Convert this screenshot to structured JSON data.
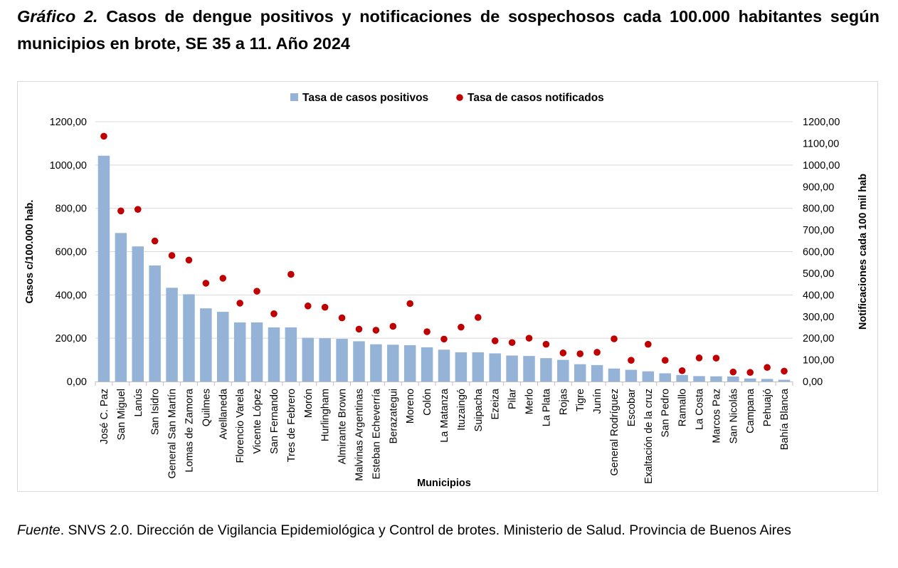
{
  "title": {
    "lead": "Gráfico 2.",
    "text": "Casos de dengue positivos y notificaciones de sospechosos cada 100.000 habitantes según municipios en brote, SE 35 a 11. Año 2024"
  },
  "source": {
    "lead": "Fuente",
    "text": ". SNVS 2.0. Dirección de Vigilancia Epidemiológica y Control de brotes. Ministerio de Salud. Provincia de Buenos Aires"
  },
  "chart_data": {
    "type": "bar",
    "xlabel": "Municipios",
    "ylabel": "Casos c/100.000 hab.",
    "y2label": "Notificaciones cada 100 mil hab",
    "ylim": [
      0,
      1200
    ],
    "y_ticks": [
      "0,00",
      "200,00",
      "400,00",
      "600,00",
      "800,00",
      "1000,00",
      "1200,00"
    ],
    "y2lim": [
      0,
      1200
    ],
    "y2_ticks": [
      "0,00",
      "100,00",
      "200,00",
      "300,00",
      "400,00",
      "500,00",
      "600,00",
      "700,00",
      "800,00",
      "900,00",
      "1000,00",
      "1100,00",
      "1200,00"
    ],
    "legend_position": "top-center",
    "grid": true,
    "colors": {
      "bar": "#95b3d7",
      "point": "#c00000",
      "grid": "#d9d9d9",
      "axis": "#bfbfbf"
    },
    "categories": [
      "José C. Paz",
      "San Miguel",
      "Lanús",
      "San Isidro",
      "General San Martín",
      "Lomas de Zamora",
      "Quilmes",
      "Avellaneda",
      "Florencio Varela",
      "Vicente López",
      "San Fernando",
      "Tres de Febrero",
      "Morón",
      "Hurlingham",
      "Almirante Brown",
      "Malvinas Argentinas",
      "Esteban Echeverría",
      "Berazategui",
      "Moreno",
      "Colón",
      "La Matanza",
      "Ituzaingó",
      "Suipacha",
      "Ezeiza",
      "Pilar",
      "Merlo",
      "La Plata",
      "Rojas",
      "Tigre",
      "Junín",
      "General Rodríguez",
      "Escobar",
      "Exaltación de la cruz",
      "San Pedro",
      "Ramallo",
      "La Costa",
      "Marcos Paz",
      "San Nicolás",
      "Campana",
      "Pehuajó",
      "Bahía Blanca"
    ],
    "series": [
      {
        "name": "Tasa de casos positivos",
        "kind": "bar",
        "axis": "left",
        "values": [
          1043,
          686,
          624,
          536,
          433,
          403,
          338,
          322,
          273,
          273,
          250,
          250,
          202,
          200,
          197,
          186,
          172,
          170,
          168,
          158,
          147,
          135,
          135,
          130,
          120,
          118,
          108,
          100,
          80,
          76,
          60,
          54,
          47,
          38,
          30,
          25,
          24,
          23,
          14,
          12,
          8
        ]
      },
      {
        "name": "Tasa de casos notificados",
        "kind": "point",
        "axis": "right",
        "values": [
          1133,
          788,
          795,
          649,
          582,
          561,
          454,
          477,
          362,
          417,
          313,
          495,
          349,
          343,
          294,
          242,
          237,
          255,
          360,
          230,
          196,
          251,
          296,
          188,
          180,
          200,
          172,
          132,
          128,
          135,
          197,
          98,
          172,
          98,
          50,
          109,
          108,
          44,
          42,
          65,
          48
        ]
      }
    ]
  }
}
